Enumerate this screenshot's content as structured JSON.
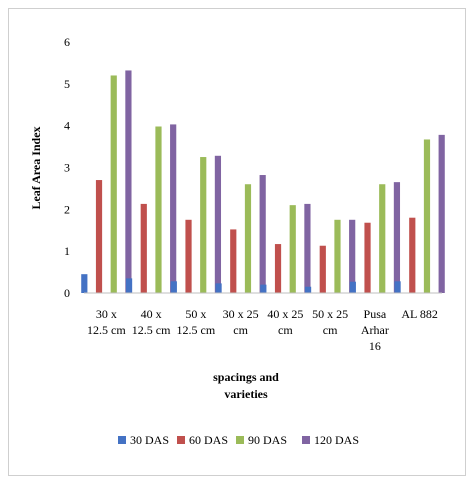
{
  "chart_data": {
    "type": "bar",
    "ylabel": "Leaf Area Index",
    "xlabel_lines": [
      "spacings and",
      "varieties"
    ],
    "ylim": [
      0,
      6
    ],
    "yticks": [
      "0",
      "1",
      "2",
      "3",
      "4",
      "5",
      "6"
    ],
    "grid": false,
    "legend_position": "bottom",
    "categories": [
      [
        "30 x",
        "12.5 cm"
      ],
      [
        "40 x",
        "12.5 cm"
      ],
      [
        "50 x",
        "12.5 cm"
      ],
      [
        "30 x 25",
        "cm"
      ],
      [
        "40 x 25",
        "cm"
      ],
      [
        "50 x 25",
        "cm"
      ],
      [
        "Pusa",
        "Arhar",
        "16"
      ],
      [
        "AL 882"
      ]
    ],
    "series": [
      {
        "name": "30 DAS",
        "color": "#4472C4",
        "values": [
          0.45,
          0.35,
          0.28,
          0.23,
          0.2,
          0.15,
          0.27,
          0.28
        ]
      },
      {
        "name": "60 DAS",
        "color": "#C0504D",
        "values": [
          2.7,
          2.13,
          1.75,
          1.52,
          1.17,
          1.13,
          1.68,
          1.8
        ]
      },
      {
        "name": "90 DAS",
        "color": "#9BBB59",
        "values": [
          5.2,
          3.98,
          3.25,
          2.6,
          2.1,
          1.75,
          2.6,
          3.67
        ]
      },
      {
        "name": "120 DAS",
        "color": "#8064A2",
        "values": [
          5.32,
          4.03,
          3.28,
          2.82,
          2.13,
          1.75,
          2.65,
          3.78
        ]
      }
    ]
  }
}
